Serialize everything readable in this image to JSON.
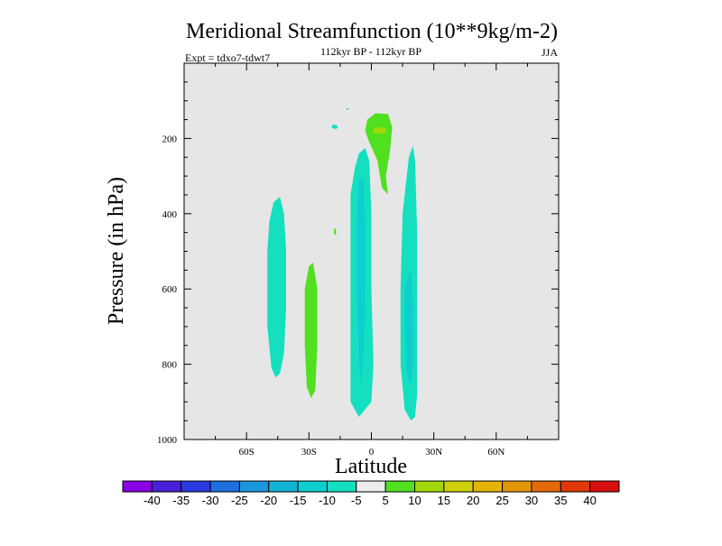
{
  "chart_data": {
    "type": "contour",
    "title": "Meridional Streamfunction (10**9kg/m-2)",
    "subtitle": "112kyr BP - 112kyr BP",
    "left_annotation": "Expt = tdxo7-tdwt7",
    "right_annotation": "JJA",
    "xlabel": "Latitude",
    "ylabel": "Pressure (in hPa)",
    "xlim": [
      -90,
      90
    ],
    "ylim": [
      1000,
      0
    ],
    "x_ticks": [
      {
        "value": -60,
        "label": "60S"
      },
      {
        "value": -30,
        "label": "30S"
      },
      {
        "value": 0,
        "label": "0"
      },
      {
        "value": 30,
        "label": "30N"
      },
      {
        "value": 60,
        "label": "60N"
      }
    ],
    "y_ticks": [
      {
        "value": 200,
        "label": "200"
      },
      {
        "value": 400,
        "label": "400"
      },
      {
        "value": 600,
        "label": "600"
      },
      {
        "value": 800,
        "label": "800"
      },
      {
        "value": 1000,
        "label": "1000"
      }
    ],
    "background_color": "#e6e6e6",
    "colorbar": {
      "levels": [
        "-40",
        "-35",
        "-30",
        "-25",
        "-20",
        "-15",
        "-10",
        "-5",
        "5",
        "10",
        "15",
        "20",
        "25",
        "30",
        "35",
        "40"
      ],
      "colors": [
        "#8a00e6",
        "#4a1fd9",
        "#2a3ae0",
        "#1e6fe0",
        "#1a96dc",
        "#12b4d6",
        "#10cdd0",
        "#14e0c0",
        "#ececec",
        "#50e020",
        "#a2d80a",
        "#cfcf0a",
        "#e4b408",
        "#e49608",
        "#e46a08",
        "#e03808",
        "#d80e0e"
      ]
    },
    "regions": [
      {
        "level_range": "-10 to -5",
        "color": "#14e0c0",
        "points": [
          [
            -47,
            370
          ],
          [
            -44,
            355
          ],
          [
            -42,
            400
          ],
          [
            -41,
            500
          ],
          [
            -41,
            650
          ],
          [
            -42,
            770
          ],
          [
            -44,
            825
          ],
          [
            -46,
            835
          ],
          [
            -48,
            810
          ],
          [
            -50,
            700
          ],
          [
            -50,
            500
          ],
          [
            -49,
            420
          ]
        ]
      },
      {
        "level_range": "5 to 10",
        "color": "#50e020",
        "points": [
          [
            -30,
            540
          ],
          [
            -28,
            530
          ],
          [
            -26,
            600
          ],
          [
            -26,
            750
          ],
          [
            -27,
            870
          ],
          [
            -29,
            890
          ],
          [
            -31,
            860
          ],
          [
            -32,
            750
          ],
          [
            -32,
            600
          ]
        ]
      },
      {
        "level_range": "-10 to -5",
        "color": "#14e0c0",
        "points": [
          [
            -6,
            240
          ],
          [
            -3,
            225
          ],
          [
            -1,
            260
          ],
          [
            0,
            400
          ],
          [
            0,
            600
          ],
          [
            1,
            800
          ],
          [
            0,
            900
          ],
          [
            -6,
            940
          ],
          [
            -10,
            900
          ],
          [
            -10,
            750
          ],
          [
            -10,
            500
          ],
          [
            -10,
            350
          ],
          [
            -8,
            280
          ]
        ]
      },
      {
        "level_range": "-15 to -10",
        "color": "#10cdd0",
        "points": [
          [
            -6,
            310
          ],
          [
            -4,
            300
          ],
          [
            -3,
            420
          ],
          [
            -3,
            650
          ],
          [
            -4,
            800
          ],
          [
            -5,
            850
          ],
          [
            -6,
            800
          ],
          [
            -7,
            600
          ],
          [
            -7,
            420
          ]
        ]
      },
      {
        "level_range": "-10 to -5",
        "color": "#14e0c0",
        "points": [
          [
            20,
            220
          ],
          [
            21,
            260
          ],
          [
            22,
            450
          ],
          [
            22,
            700
          ],
          [
            22,
            880
          ],
          [
            21,
            940
          ],
          [
            19,
            950
          ],
          [
            16,
            920
          ],
          [
            14,
            800
          ],
          [
            14,
            600
          ],
          [
            15,
            400
          ],
          [
            17,
            300
          ],
          [
            18,
            250
          ]
        ]
      },
      {
        "level_range": "-15 to -10",
        "color": "#10cdd0",
        "points": [
          [
            18,
            560
          ],
          [
            19,
            550
          ],
          [
            20,
            650
          ],
          [
            20,
            800
          ],
          [
            19,
            860
          ],
          [
            17,
            820
          ],
          [
            16,
            700
          ],
          [
            16,
            600
          ]
        ]
      },
      {
        "level_range": "5 to 10",
        "color": "#50e020",
        "points": [
          [
            -2,
            150
          ],
          [
            2,
            133
          ],
          [
            8,
            135
          ],
          [
            10,
            170
          ],
          [
            9,
            230
          ],
          [
            7,
            300
          ],
          [
            8,
            350
          ],
          [
            5,
            330
          ],
          [
            3,
            260
          ],
          [
            -1,
            210
          ],
          [
            -3,
            180
          ]
        ]
      },
      {
        "level_range": "10 to 15",
        "color": "#a2d80a",
        "points": [
          [
            1,
            175
          ],
          [
            3,
            170
          ],
          [
            7,
            172
          ],
          [
            7,
            185
          ],
          [
            3,
            188
          ],
          [
            1,
            184
          ]
        ]
      },
      {
        "level_range": "-10 to -5",
        "color": "#14e0c0",
        "points": [
          [
            -19,
            165
          ],
          [
            -17,
            163
          ],
          [
            -16,
            170
          ],
          [
            -17,
            175
          ],
          [
            -19,
            172
          ]
        ]
      },
      {
        "level_range": "-10 to -5",
        "color": "#14e0c0",
        "points": [
          [
            -12,
            120
          ],
          [
            -11,
            120
          ],
          [
            -11,
            124
          ],
          [
            -12,
            124
          ]
        ]
      },
      {
        "level_range": "5 to 10",
        "color": "#50e020",
        "points": [
          [
            -18,
            440
          ],
          [
            -17,
            440
          ],
          [
            -17,
            455
          ],
          [
            -18,
            455
          ]
        ]
      }
    ]
  }
}
